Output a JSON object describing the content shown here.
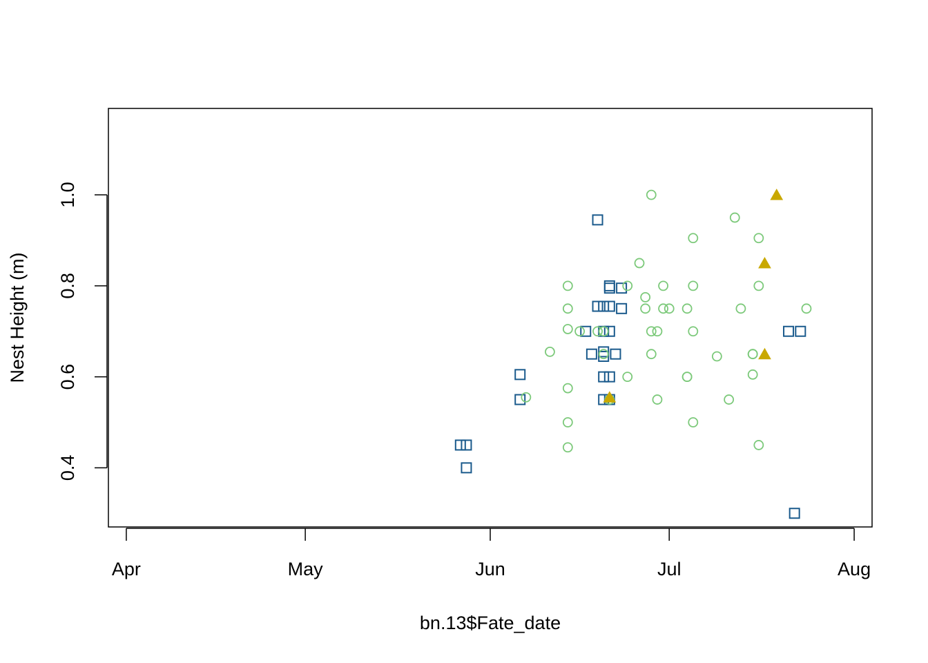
{
  "chart_data": {
    "type": "scatter",
    "title": "",
    "xlabel": "bn.13$Fate_date",
    "ylabel": "Nest Height (m)",
    "x_axis_type": "date",
    "xlim": [
      "2013-03-29",
      "2013-08-04"
    ],
    "ylim": [
      0.27,
      1.19
    ],
    "x_ticks": [
      {
        "date": "2013-04-01",
        "label": "Apr"
      },
      {
        "date": "2013-05-01",
        "label": "May"
      },
      {
        "date": "2013-06-01",
        "label": "Jun"
      },
      {
        "date": "2013-07-01",
        "label": "Jul"
      },
      {
        "date": "2013-08-01",
        "label": "Aug"
      }
    ],
    "y_ticks": [
      {
        "value": 0.4,
        "label": "0.4"
      },
      {
        "value": 0.6,
        "label": "0.6"
      },
      {
        "value": 0.8,
        "label": "0.8"
      },
      {
        "value": 1.0,
        "label": "1.0"
      }
    ],
    "grid": false,
    "legend": "none",
    "series": [
      {
        "marker": "square",
        "color": "#1a5a8c",
        "points": [
          {
            "x": "2013-05-27",
            "y": 0.45
          },
          {
            "x": "2013-05-28",
            "y": 0.45
          },
          {
            "x": "2013-05-28",
            "y": 0.4
          },
          {
            "x": "2013-06-06",
            "y": 0.605
          },
          {
            "x": "2013-06-06",
            "y": 0.55
          },
          {
            "x": "2013-06-17",
            "y": 0.7
          },
          {
            "x": "2013-06-18",
            "y": 0.65
          },
          {
            "x": "2013-06-19",
            "y": 0.945
          },
          {
            "x": "2013-06-19",
            "y": 0.755
          },
          {
            "x": "2013-06-20",
            "y": 0.755
          },
          {
            "x": "2013-06-20",
            "y": 0.7
          },
          {
            "x": "2013-06-20",
            "y": 0.655
          },
          {
            "x": "2013-06-20",
            "y": 0.645
          },
          {
            "x": "2013-06-20",
            "y": 0.6
          },
          {
            "x": "2013-06-20",
            "y": 0.55
          },
          {
            "x": "2013-06-21",
            "y": 0.8
          },
          {
            "x": "2013-06-21",
            "y": 0.795
          },
          {
            "x": "2013-06-21",
            "y": 0.755
          },
          {
            "x": "2013-06-21",
            "y": 0.7
          },
          {
            "x": "2013-06-21",
            "y": 0.6
          },
          {
            "x": "2013-06-21",
            "y": 0.55
          },
          {
            "x": "2013-06-22",
            "y": 0.65
          },
          {
            "x": "2013-06-23",
            "y": 0.795
          },
          {
            "x": "2013-06-23",
            "y": 0.75
          },
          {
            "x": "2013-07-21",
            "y": 0.7
          },
          {
            "x": "2013-07-22",
            "y": 0.3
          },
          {
            "x": "2013-07-23",
            "y": 0.7
          }
        ]
      },
      {
        "marker": "circle",
        "color": "#7cc97a",
        "points": [
          {
            "x": "2013-06-07",
            "y": 0.555
          },
          {
            "x": "2013-06-11",
            "y": 0.655
          },
          {
            "x": "2013-06-14",
            "y": 0.8
          },
          {
            "x": "2013-06-14",
            "y": 0.75
          },
          {
            "x": "2013-06-14",
            "y": 0.705
          },
          {
            "x": "2013-06-14",
            "y": 0.575
          },
          {
            "x": "2013-06-14",
            "y": 0.5
          },
          {
            "x": "2013-06-14",
            "y": 0.445
          },
          {
            "x": "2013-06-16",
            "y": 0.7
          },
          {
            "x": "2013-06-19",
            "y": 0.7
          },
          {
            "x": "2013-06-20",
            "y": 0.7
          },
          {
            "x": "2013-06-20",
            "y": 0.65
          },
          {
            "x": "2013-06-21",
            "y": 0.55
          },
          {
            "x": "2013-06-24",
            "y": 0.8
          },
          {
            "x": "2013-06-24",
            "y": 0.6
          },
          {
            "x": "2013-06-26",
            "y": 0.85
          },
          {
            "x": "2013-06-27",
            "y": 0.775
          },
          {
            "x": "2013-06-27",
            "y": 0.75
          },
          {
            "x": "2013-06-28",
            "y": 1.0
          },
          {
            "x": "2013-06-28",
            "y": 0.7
          },
          {
            "x": "2013-06-28",
            "y": 0.65
          },
          {
            "x": "2013-06-29",
            "y": 0.7
          },
          {
            "x": "2013-06-29",
            "y": 0.55
          },
          {
            "x": "2013-06-30",
            "y": 0.8
          },
          {
            "x": "2013-06-30",
            "y": 0.75
          },
          {
            "x": "2013-07-01",
            "y": 0.75
          },
          {
            "x": "2013-07-04",
            "y": 0.75
          },
          {
            "x": "2013-07-04",
            "y": 0.6
          },
          {
            "x": "2013-07-04",
            "y": 0.6
          },
          {
            "x": "2013-07-05",
            "y": 0.905
          },
          {
            "x": "2013-07-05",
            "y": 0.8
          },
          {
            "x": "2013-07-05",
            "y": 0.7
          },
          {
            "x": "2013-07-05",
            "y": 0.5
          },
          {
            "x": "2013-07-09",
            "y": 0.645
          },
          {
            "x": "2013-07-11",
            "y": 0.55
          },
          {
            "x": "2013-07-12",
            "y": 0.95
          },
          {
            "x": "2013-07-13",
            "y": 0.75
          },
          {
            "x": "2013-07-15",
            "y": 0.65
          },
          {
            "x": "2013-07-15",
            "y": 0.65
          },
          {
            "x": "2013-07-15",
            "y": 0.605
          },
          {
            "x": "2013-07-16",
            "y": 0.905
          },
          {
            "x": "2013-07-16",
            "y": 0.8
          },
          {
            "x": "2013-07-16",
            "y": 0.45
          },
          {
            "x": "2013-07-24",
            "y": 0.75
          }
        ]
      },
      {
        "marker": "triangle",
        "color": "#c9a800",
        "points": [
          {
            "x": "2013-06-21",
            "y": 0.555
          },
          {
            "x": "2013-07-17",
            "y": 0.85
          },
          {
            "x": "2013-07-17",
            "y": 0.65
          },
          {
            "x": "2013-07-19",
            "y": 1.0
          }
        ]
      }
    ]
  }
}
